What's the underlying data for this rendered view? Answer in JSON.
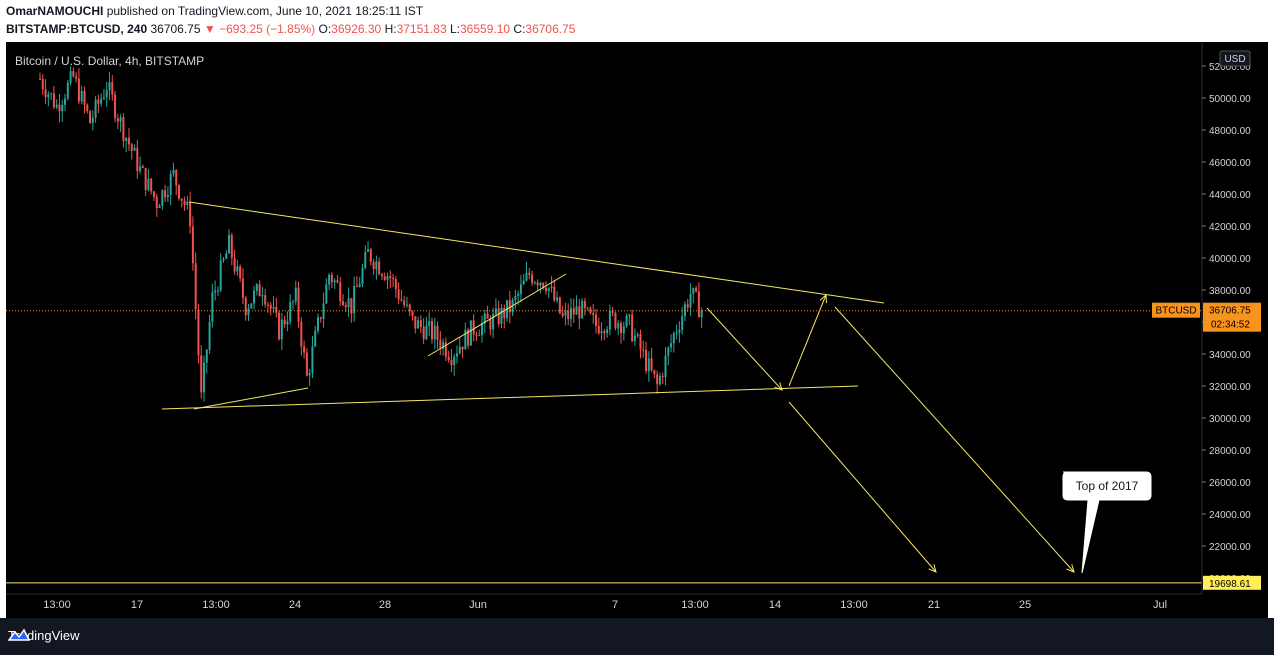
{
  "header": {
    "author": "OmarNAMOUCHI",
    "published_text": "published on TradingView.com, June 10, 2021 18:25:11 IST",
    "symbol": "BITSTAMP:BTCUSD, 240",
    "last": "36706.75",
    "change": "▼ −693.25 (−1.85%)",
    "o_label": "O:",
    "o_val": "36926.30",
    "h_label": "H:",
    "h_val": "37151.83",
    "l_label": "L:",
    "l_val": "36559.10",
    "c_label": "C:",
    "c_val": "36706.75"
  },
  "chart_title": "Bitcoin / U.S. Dollar, 4h, BITSTAMP",
  "currency_badge": "USD",
  "price_tag": {
    "label": "BTCUSD",
    "value": "36706.75",
    "countdown": "02:34:52"
  },
  "target_tag": {
    "value": "19698.61"
  },
  "callout": "Top of 2017",
  "footer": {
    "brand": "TradingView"
  },
  "colors": {
    "up": "#26a69a",
    "down": "#ef5350",
    "drawing": "#f5e663",
    "price_tag": "#f7941d",
    "target_tag": "#ffee58"
  },
  "chart_data": {
    "type": "candlestick",
    "y_ticks": [
      "52000.00",
      "50000.00",
      "48000.00",
      "46000.00",
      "44000.00",
      "42000.00",
      "40000.00",
      "38000.00",
      "36000.00",
      "34000.00",
      "32000.00",
      "30000.00",
      "28000.00",
      "26000.00",
      "24000.00",
      "22000.00",
      "20000.00"
    ],
    "y_range": [
      19000,
      53500
    ],
    "x_ticks": [
      "13:00",
      "17",
      "13:00",
      "24",
      "28",
      "Jun",
      "7",
      "13:00",
      "14",
      "13:00",
      "21",
      "25",
      "Jul"
    ],
    "last_price": 36706.75,
    "target_price": 19698.61,
    "candle_path": [
      {
        "t": 0,
        "p": 51200
      },
      {
        "t": 6,
        "p": 49500
      },
      {
        "t": 12,
        "p": 51300
      },
      {
        "t": 18,
        "p": 48500
      },
      {
        "t": 24,
        "p": 50800
      },
      {
        "t": 30,
        "p": 48000
      },
      {
        "t": 36,
        "p": 45500
      },
      {
        "t": 42,
        "p": 43500
      },
      {
        "t": 48,
        "p": 45200
      },
      {
        "t": 54,
        "p": 42500
      },
      {
        "t": 58,
        "p": 31200
      },
      {
        "t": 62,
        "p": 37500
      },
      {
        "t": 68,
        "p": 40800
      },
      {
        "t": 74,
        "p": 37000
      },
      {
        "t": 80,
        "p": 38200
      },
      {
        "t": 86,
        "p": 35500
      },
      {
        "t": 92,
        "p": 37500
      },
      {
        "t": 96,
        "p": 32500
      },
      {
        "t": 104,
        "p": 39000
      },
      {
        "t": 112,
        "p": 37000
      },
      {
        "t": 118,
        "p": 40300
      },
      {
        "t": 126,
        "p": 38800
      },
      {
        "t": 134,
        "p": 36000
      },
      {
        "t": 142,
        "p": 35200
      },
      {
        "t": 148,
        "p": 34000
      },
      {
        "t": 156,
        "p": 35600
      },
      {
        "t": 164,
        "p": 36200
      },
      {
        "t": 170,
        "p": 37000
      },
      {
        "t": 176,
        "p": 39000
      },
      {
        "t": 182,
        "p": 38500
      },
      {
        "t": 188,
        "p": 36200
      },
      {
        "t": 194,
        "p": 36800
      },
      {
        "t": 200,
        "p": 35800
      },
      {
        "t": 206,
        "p": 36200
      },
      {
        "t": 212,
        "p": 35800
      },
      {
        "t": 218,
        "p": 33500
      },
      {
        "t": 222,
        "p": 32000
      },
      {
        "t": 228,
        "p": 35200
      },
      {
        "t": 234,
        "p": 37800
      },
      {
        "t": 238,
        "p": 36706
      }
    ],
    "drawings": {
      "upper_trendline": [
        [
          42900,
          0.155
        ],
        [
          36550,
          0.733
        ]
      ],
      "lower_trendline": [
        [
          30050,
          0.13
        ],
        [
          31450,
          0.708
        ]
      ]
    }
  }
}
